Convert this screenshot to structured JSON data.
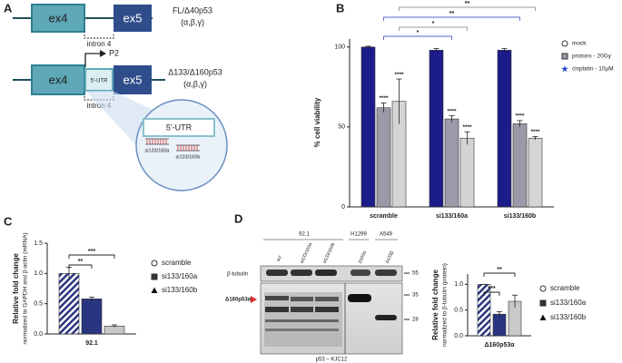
{
  "panel_labels": [
    "A",
    "B",
    "C",
    "D"
  ],
  "diagram": {
    "transcript_1": {
      "exons": [
        "ex4",
        "ex5"
      ],
      "intron": "intron 4",
      "name": "FL/Δ40p53",
      "isoforms": "(α,β,γ)"
    },
    "transcript_2": {
      "exons": [
        "ex4",
        "5'-UTR",
        "ex5"
      ],
      "promoter": "P2",
      "intron": "intron 4",
      "name": "Δ133/Δ160p53",
      "isoforms": "(α,β,γ)"
    },
    "inset": {
      "region": "5'-UTR",
      "sirnas": [
        "si133/160a",
        "si133/160b"
      ]
    }
  },
  "blot": {
    "cell_lines": [
      "92.1",
      "H1299",
      "A549"
    ],
    "lanes": [
      "scr",
      "si133/160a",
      "si133/160b",
      "Δ160α",
      "Δ133β"
    ],
    "loading_control": "β-tubulin",
    "band_label": "Δ160p53α",
    "markers": [
      "55",
      "35",
      "28"
    ],
    "antibody": "p53 – KJC12"
  },
  "chart_data": [
    {
      "type": "bar",
      "ylabel": "% cell viability",
      "categories": [
        "scramble",
        "si133/160a",
        "si133/160b"
      ],
      "series": [
        {
          "name": "mock",
          "color": "#1c1c8a",
          "marker": "circle",
          "values": [
            100,
            98,
            98
          ],
          "errors": [
            0.5,
            1,
            1
          ]
        },
        {
          "name": "protons - 20Gy",
          "color": "#9a9aa8",
          "marker": "square",
          "values": [
            62,
            55,
            52
          ],
          "errors": [
            3,
            2,
            2
          ],
          "annotations": [
            "****",
            "****",
            "****"
          ]
        },
        {
          "name": "cisplatin - 10µM",
          "color": "#d4d4d4",
          "marker": "star",
          "values": [
            66,
            43,
            43
          ],
          "errors": [
            14,
            4,
            1
          ],
          "annotations": [
            "****",
            "****",
            "****"
          ]
        }
      ],
      "ylim": [
        0,
        105
      ],
      "yticks": [
        0,
        50,
        100
      ],
      "brackets": [
        "**",
        "**",
        "*",
        "*"
      ]
    },
    {
      "type": "bar",
      "ylabel": "Relative fold change",
      "ylabel2": "normalized to GAPDH and β-actin (mRNA)",
      "categories": [
        "92.1"
      ],
      "series": [
        {
          "name": "scramble",
          "color": "#2a3580",
          "hatch": true,
          "marker": "circle",
          "values": [
            1.0
          ],
          "errors": [
            0.1
          ]
        },
        {
          "name": "si133/160a",
          "color": "#2a3580",
          "marker": "square",
          "values": [
            0.58
          ],
          "errors": [
            0.03
          ]
        },
        {
          "name": "si133/160b",
          "color": "#c8c8c8",
          "marker": "triangle",
          "values": [
            0.13
          ],
          "errors": [
            0.02
          ]
        }
      ],
      "ylim": [
        0,
        1.5
      ],
      "yticks": [
        {
          "value": 0,
          "label": "0.0"
        },
        {
          "value": 0.5,
          "label": "0.5"
        },
        {
          "value": 1,
          "label": "1.0"
        },
        {
          "value": 1.5,
          "label": "1.5"
        }
      ],
      "brackets": [
        "**",
        "***"
      ]
    },
    {
      "type": "bar",
      "ylabel": "Relative fold change",
      "ylabel2": "normalized to β-tubulin (protein)",
      "categories": [
        "Δ160p53α"
      ],
      "series": [
        {
          "name": "scramble",
          "color": "#2a3580",
          "hatch": true,
          "marker": "circle",
          "values": [
            1.0
          ],
          "errors": [
            0
          ]
        },
        {
          "name": "si133/160a",
          "color": "#2a3580",
          "marker": "square",
          "values": [
            0.42
          ],
          "errors": [
            0.05
          ]
        },
        {
          "name": "si133/160b",
          "color": "#c8c8c8",
          "marker": "triangle",
          "values": [
            0.67
          ],
          "errors": [
            0.12
          ]
        }
      ],
      "ylim": [
        0,
        1.2
      ],
      "yticks": [
        {
          "value": 0,
          "label": "0.0"
        },
        {
          "value": 0.5,
          "label": "0.5"
        },
        {
          "value": 1,
          "label": "1.0"
        }
      ],
      "brackets": [
        "***",
        "**"
      ]
    }
  ]
}
